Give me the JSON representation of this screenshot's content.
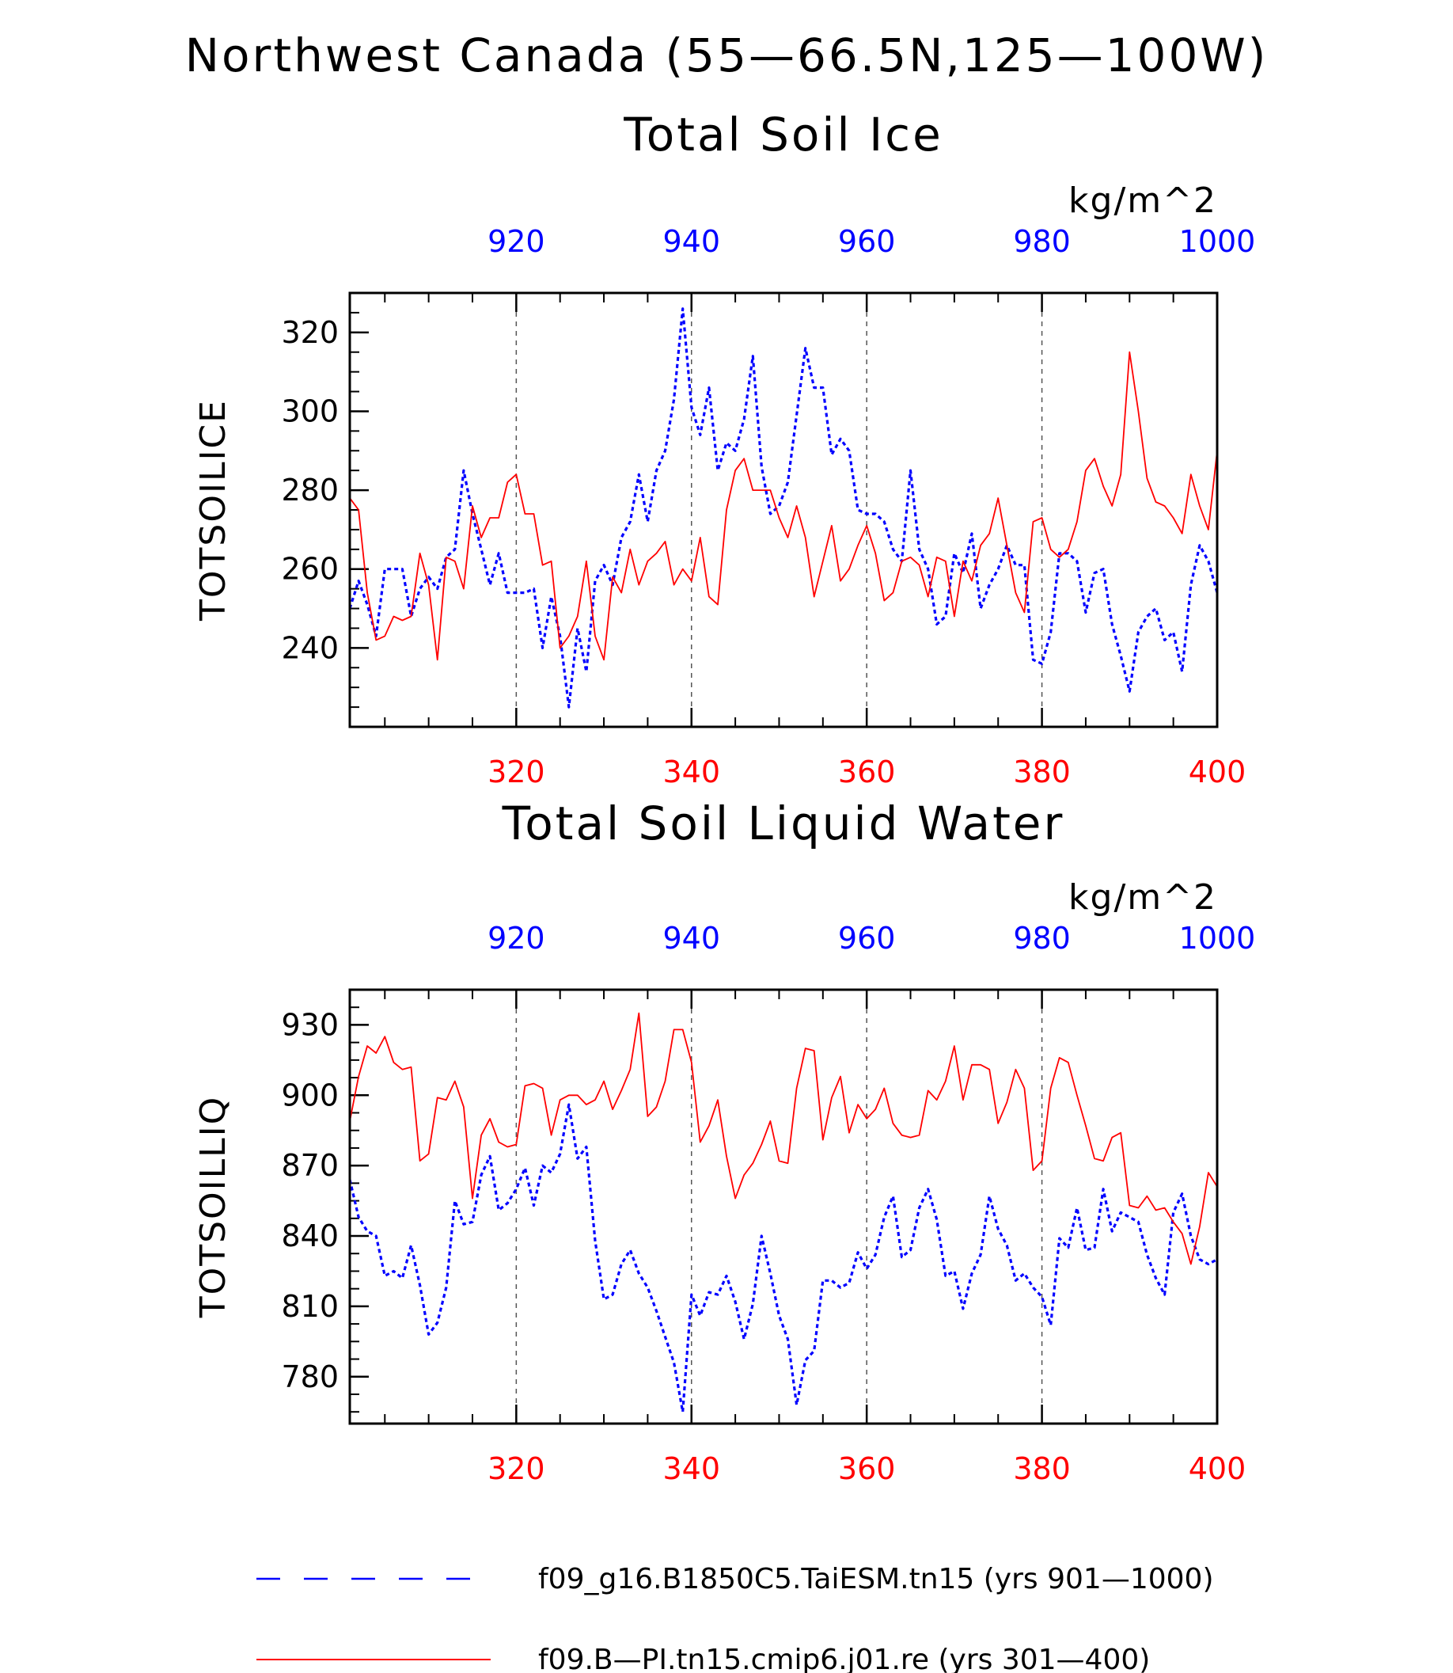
{
  "figure": {
    "title": "Northwest Canada (55—66.5N,125—100W)",
    "legend_placement": "bottom",
    "colors": {
      "series_a": "#0000ff",
      "series_b": "#ff0000",
      "axis": "#000000",
      "grid": "#555555"
    }
  },
  "chart_data": [
    {
      "type": "line",
      "title": "Total Soil Ice",
      "units": "kg/m^2",
      "ylabel": "TOTSOILICE",
      "ylim": [
        220,
        330
      ],
      "y_ticks": [
        240,
        260,
        280,
        300,
        320
      ],
      "y_tick_labels": [
        "240",
        "260",
        "280",
        "300",
        "320"
      ],
      "x_bottom": {
        "range": [
          301,
          400
        ],
        "ticks": [
          320,
          340,
          360,
          380,
          400
        ],
        "tick_labels": [
          "320",
          "340",
          "360",
          "380",
          "400"
        ]
      },
      "x_top": {
        "range": [
          901,
          1000
        ],
        "ticks": [
          920,
          940,
          960,
          980,
          1000
        ],
        "tick_labels": [
          "920",
          "940",
          "960",
          "980",
          "1000"
        ]
      },
      "grid": "vertical dashed at labeled ticks",
      "series": [
        {
          "name": "f09_g16.B1850C5.TaiESM.tn15 (yrs 901—1000)",
          "axis": "top",
          "style": "dashed",
          "x": [
            901,
            902,
            903,
            904,
            905,
            906,
            907,
            908,
            909,
            910,
            911,
            912,
            913,
            914,
            915,
            916,
            917,
            918,
            919,
            920,
            921,
            922,
            923,
            924,
            925,
            926,
            927,
            928,
            929,
            930,
            931,
            932,
            933,
            934,
            935,
            936,
            937,
            938,
            939,
            940,
            941,
            942,
            943,
            944,
            945,
            946,
            947,
            948,
            949,
            950,
            951,
            952,
            953,
            954,
            955,
            956,
            957,
            958,
            959,
            960,
            961,
            962,
            963,
            964,
            965,
            966,
            967,
            968,
            969,
            970,
            971,
            972,
            973,
            974,
            975,
            976,
            977,
            978,
            979,
            980,
            981,
            982,
            983,
            984,
            985,
            986,
            987,
            988,
            989,
            990,
            991,
            992,
            993,
            994,
            995,
            996,
            997,
            998,
            999,
            1000
          ],
          "values": [
            250,
            257,
            251,
            243,
            260,
            260,
            260,
            248,
            255,
            258,
            255,
            263,
            265,
            285,
            274,
            265,
            256,
            264,
            254,
            254,
            254,
            255,
            240,
            253,
            243,
            225,
            245,
            234,
            257,
            261,
            256,
            268,
            272,
            284,
            272,
            285,
            290,
            303,
            326,
            301,
            294,
            306,
            285,
            292,
            290,
            298,
            314,
            286,
            274,
            276,
            282,
            299,
            316,
            306,
            306,
            289,
            293,
            290,
            275,
            274,
            274,
            272,
            265,
            262,
            285,
            265,
            260,
            246,
            248,
            264,
            259,
            269,
            250,
            256,
            260,
            266,
            261,
            261,
            237,
            236,
            244,
            264,
            264,
            262,
            249,
            259,
            260,
            246,
            238,
            229,
            244,
            248,
            250,
            242,
            244,
            234,
            256,
            266,
            262,
            254
          ]
        },
        {
          "name": "f09.B—PI.tn15.cmip6.j01.re (yrs 301—400)",
          "axis": "bottom",
          "style": "solid",
          "x": [
            301,
            302,
            303,
            304,
            305,
            306,
            307,
            308,
            309,
            310,
            311,
            312,
            313,
            314,
            315,
            316,
            317,
            318,
            319,
            320,
            321,
            322,
            323,
            324,
            325,
            326,
            327,
            328,
            329,
            330,
            331,
            332,
            333,
            334,
            335,
            336,
            337,
            338,
            339,
            340,
            341,
            342,
            343,
            344,
            345,
            346,
            347,
            348,
            349,
            350,
            351,
            352,
            353,
            354,
            355,
            356,
            357,
            358,
            359,
            360,
            361,
            362,
            363,
            364,
            365,
            366,
            367,
            368,
            369,
            370,
            371,
            372,
            373,
            374,
            375,
            376,
            377,
            378,
            379,
            380,
            381,
            382,
            383,
            384,
            385,
            386,
            387,
            388,
            389,
            390,
            391,
            392,
            393,
            394,
            395,
            396,
            397,
            398,
            399,
            400
          ],
          "values": [
            278,
            275,
            254,
            242,
            243,
            248,
            247,
            248,
            264,
            256,
            237,
            263,
            262,
            255,
            276,
            268,
            273,
            273,
            282,
            284,
            274,
            274,
            261,
            262,
            240,
            243,
            248,
            262,
            243,
            237,
            258,
            254,
            265,
            256,
            262,
            264,
            267,
            256,
            260,
            257,
            268,
            253,
            251,
            275,
            285,
            288,
            280,
            280,
            280,
            273,
            268,
            276,
            268,
            253,
            262,
            271,
            257,
            260,
            266,
            271,
            264,
            252,
            254,
            262,
            263,
            261,
            253,
            263,
            262,
            248,
            262,
            257,
            266,
            269,
            278,
            266,
            254,
            249,
            272,
            273,
            265,
            263,
            265,
            272,
            285,
            288,
            281,
            276,
            284,
            315,
            300,
            283,
            277,
            276,
            273,
            269,
            284,
            276,
            270,
            290
          ]
        }
      ]
    },
    {
      "type": "line",
      "title": "Total Soil Liquid Water",
      "units": "kg/m^2",
      "ylabel": "TOTSOILLIQ",
      "ylim": [
        760,
        945
      ],
      "y_ticks": [
        780,
        810,
        840,
        870,
        900,
        930
      ],
      "y_tick_labels": [
        "780",
        "810",
        "840",
        "870",
        "900",
        "930"
      ],
      "x_bottom": {
        "range": [
          301,
          400
        ],
        "ticks": [
          320,
          340,
          360,
          380,
          400
        ],
        "tick_labels": [
          "320",
          "340",
          "360",
          "380",
          "400"
        ]
      },
      "x_top": {
        "range": [
          901,
          1000
        ],
        "ticks": [
          920,
          940,
          960,
          980,
          1000
        ],
        "tick_labels": [
          "920",
          "940",
          "960",
          "980",
          "1000"
        ]
      },
      "grid": "vertical dashed at labeled ticks",
      "series": [
        {
          "name": "f09_g16.B1850C5.TaiESM.tn15 (yrs 901—1000)",
          "axis": "top",
          "style": "dashed",
          "x": [
            901,
            902,
            903,
            904,
            905,
            906,
            907,
            908,
            909,
            910,
            911,
            912,
            913,
            914,
            915,
            916,
            917,
            918,
            919,
            920,
            921,
            922,
            923,
            924,
            925,
            926,
            927,
            928,
            929,
            930,
            931,
            932,
            933,
            934,
            935,
            936,
            937,
            938,
            939,
            940,
            941,
            942,
            943,
            944,
            945,
            946,
            947,
            948,
            949,
            950,
            951,
            952,
            953,
            954,
            955,
            956,
            957,
            958,
            959,
            960,
            961,
            962,
            963,
            964,
            965,
            966,
            967,
            968,
            969,
            970,
            971,
            972,
            973,
            974,
            975,
            976,
            977,
            978,
            979,
            980,
            981,
            982,
            983,
            984,
            985,
            986,
            987,
            988,
            989,
            990,
            991,
            992,
            993,
            994,
            995,
            996,
            997,
            998,
            999,
            1000
          ],
          "values": [
            864,
            848,
            842,
            840,
            823,
            825,
            822,
            836,
            819,
            798,
            803,
            818,
            855,
            845,
            846,
            866,
            874,
            851,
            854,
            860,
            869,
            853,
            870,
            867,
            875,
            896,
            873,
            878,
            838,
            813,
            815,
            828,
            834,
            824,
            818,
            808,
            797,
            786,
            765,
            815,
            806,
            816,
            815,
            823,
            812,
            796,
            811,
            840,
            824,
            806,
            796,
            768,
            787,
            791,
            821,
            821,
            818,
            820,
            833,
            826,
            832,
            848,
            857,
            831,
            834,
            852,
            860,
            847,
            823,
            825,
            809,
            824,
            832,
            857,
            843,
            836,
            821,
            824,
            818,
            814,
            802,
            839,
            835,
            852,
            834,
            835,
            860,
            842,
            850,
            848,
            846,
            832,
            822,
            815,
            850,
            858,
            840,
            830,
            828,
            830
          ]
        },
        {
          "name": "f09.B—PI.tn15.cmip6.j01.re (yrs 301—400)",
          "axis": "bottom",
          "style": "solid",
          "x": [
            301,
            302,
            303,
            304,
            305,
            306,
            307,
            308,
            309,
            310,
            311,
            312,
            313,
            314,
            315,
            316,
            317,
            318,
            319,
            320,
            321,
            322,
            323,
            324,
            325,
            326,
            327,
            328,
            329,
            330,
            331,
            332,
            333,
            334,
            335,
            336,
            337,
            338,
            339,
            340,
            341,
            342,
            343,
            344,
            345,
            346,
            347,
            348,
            349,
            350,
            351,
            352,
            353,
            354,
            355,
            356,
            357,
            358,
            359,
            360,
            361,
            362,
            363,
            364,
            365,
            366,
            367,
            368,
            369,
            370,
            371,
            372,
            373,
            374,
            375,
            376,
            377,
            378,
            379,
            380,
            381,
            382,
            383,
            384,
            385,
            386,
            387,
            388,
            389,
            390,
            391,
            392,
            393,
            394,
            395,
            396,
            397,
            398,
            399,
            400
          ],
          "values": [
            889,
            908,
            921,
            918,
            925,
            914,
            911,
            912,
            872,
            875,
            899,
            898,
            906,
            895,
            856,
            883,
            890,
            880,
            878,
            879,
            904,
            905,
            903,
            883,
            898,
            900,
            900,
            896,
            898,
            906,
            894,
            902,
            911,
            935,
            891,
            895,
            906,
            928,
            928,
            914,
            880,
            887,
            898,
            874,
            856,
            866,
            871,
            879,
            889,
            872,
            871,
            903,
            920,
            919,
            881,
            899,
            908,
            884,
            896,
            890,
            894,
            903,
            888,
            883,
            882,
            883,
            902,
            898,
            906,
            921,
            898,
            913,
            913,
            911,
            888,
            897,
            911,
            903,
            868,
            872,
            903,
            916,
            914,
            900,
            887,
            873,
            872,
            882,
            884,
            853,
            852,
            857,
            851,
            852,
            846,
            841,
            828,
            844,
            867,
            861
          ]
        }
      ]
    }
  ]
}
